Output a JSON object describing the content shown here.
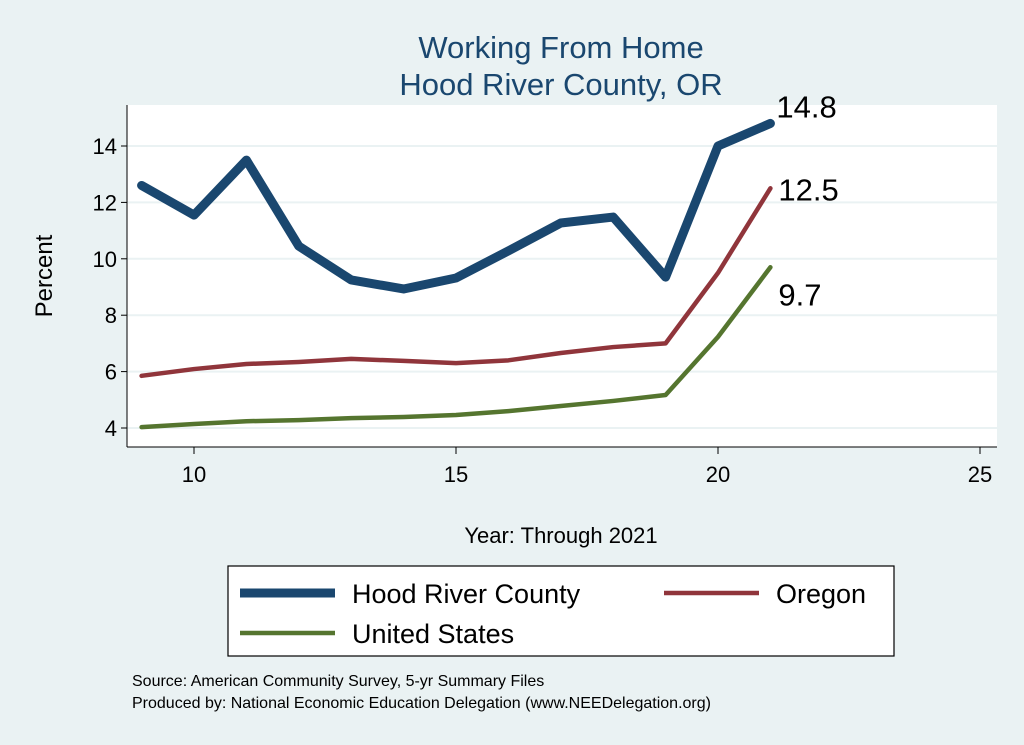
{
  "chart_data": {
    "type": "line",
    "title": "Working From Home",
    "subtitle": "Hood River County, OR",
    "xlabel": "Year: Through 2021",
    "ylabel": "Percent",
    "xlim": [
      8.75,
      25.3
    ],
    "ylim": [
      3.3,
      15.4
    ],
    "xticks": [
      10,
      15,
      20,
      25
    ],
    "yticks": [
      4,
      6,
      8,
      10,
      12,
      14
    ],
    "grid": true,
    "legend_position": "bottom",
    "x": [
      9,
      10,
      11,
      12,
      13,
      14,
      15,
      16,
      17,
      18,
      19,
      20,
      21
    ],
    "series": [
      {
        "name": "Hood River County",
        "color": "#1a476f",
        "end_label": "14.8",
        "values": [
          12.6,
          11.55,
          13.5,
          10.45,
          9.25,
          8.93,
          9.32,
          10.28,
          11.27,
          11.48,
          9.35,
          14.0,
          14.8
        ]
      },
      {
        "name": "Oregon",
        "color": "#90353b",
        "end_label": "12.5",
        "values": [
          5.85,
          6.09,
          6.27,
          6.34,
          6.45,
          6.38,
          6.3,
          6.4,
          6.66,
          6.87,
          7.0,
          9.5,
          12.5
        ]
      },
      {
        "name": "United States",
        "color": "#55752f",
        "end_label": "9.7",
        "values": [
          4.03,
          4.14,
          4.24,
          4.28,
          4.35,
          4.39,
          4.46,
          4.6,
          4.78,
          4.96,
          5.17,
          7.23,
          9.7
        ]
      }
    ],
    "notes": [
      "Source: American Community Survey, 5-yr Summary Files",
      "Produced by: National Economic Education Delegation (www.NEEDelegation.org)"
    ]
  }
}
